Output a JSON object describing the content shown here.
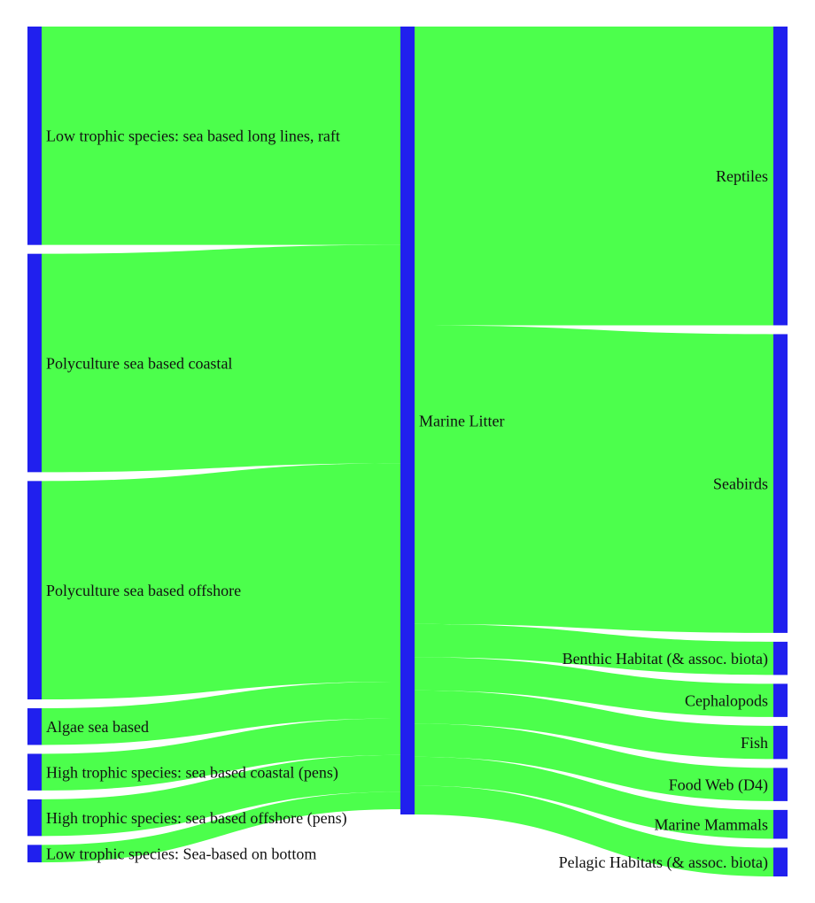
{
  "chart_data": {
    "type": "sankey",
    "title": "",
    "colors": {
      "node": "#2020ee",
      "link": "#4cff4c"
    },
    "columns": [
      [
        "Low trophic species: sea based long lines, raft",
        "Polyculture sea based coastal",
        "Polyculture sea based offshore",
        "Algae sea based",
        "High trophic species: sea based coastal (pens)",
        "High trophic species: sea based offshore (pens)",
        "Low trophic species: Sea-based on bottom"
      ],
      [
        "Marine Litter"
      ],
      [
        "Reptiles",
        "Seabirds",
        "Benthic Habitat (& assoc. biota)",
        "Cephalopods",
        "Fish",
        "Food Web (D4)",
        "Marine Mammals",
        "Pelagic Habitats (& assoc. biota)"
      ]
    ],
    "links": [
      {
        "source": "Low trophic species: sea based long lines, raft",
        "target": "Marine Litter",
        "value": 2.5
      },
      {
        "source": "Polyculture sea based coastal",
        "target": "Marine Litter",
        "value": 2.5
      },
      {
        "source": "Polyculture sea based offshore",
        "target": "Marine Litter",
        "value": 2.5
      },
      {
        "source": "Algae sea based",
        "target": "Marine Litter",
        "value": 0.42
      },
      {
        "source": "High trophic species: sea based coastal (pens)",
        "target": "Marine Litter",
        "value": 0.42
      },
      {
        "source": "High trophic species: sea based offshore (pens)",
        "target": "Marine Litter",
        "value": 0.42
      },
      {
        "source": "Low trophic species: Sea-based on bottom",
        "target": "Marine Litter",
        "value": 0.2
      },
      {
        "source": "Marine Litter",
        "target": "Reptiles",
        "value": 3.42
      },
      {
        "source": "Marine Litter",
        "target": "Seabirds",
        "value": 3.42
      },
      {
        "source": "Marine Litter",
        "target": "Benthic Habitat (& assoc. biota)",
        "value": 0.38
      },
      {
        "source": "Marine Litter",
        "target": "Cephalopods",
        "value": 0.38
      },
      {
        "source": "Marine Litter",
        "target": "Fish",
        "value": 0.38
      },
      {
        "source": "Marine Litter",
        "target": "Food Web (D4)",
        "value": 0.38
      },
      {
        "source": "Marine Litter",
        "target": "Marine Mammals",
        "value": 0.33
      },
      {
        "source": "Marine Litter",
        "target": "Pelagic Habitats (& assoc. biota)",
        "value": 0.33
      }
    ]
  }
}
